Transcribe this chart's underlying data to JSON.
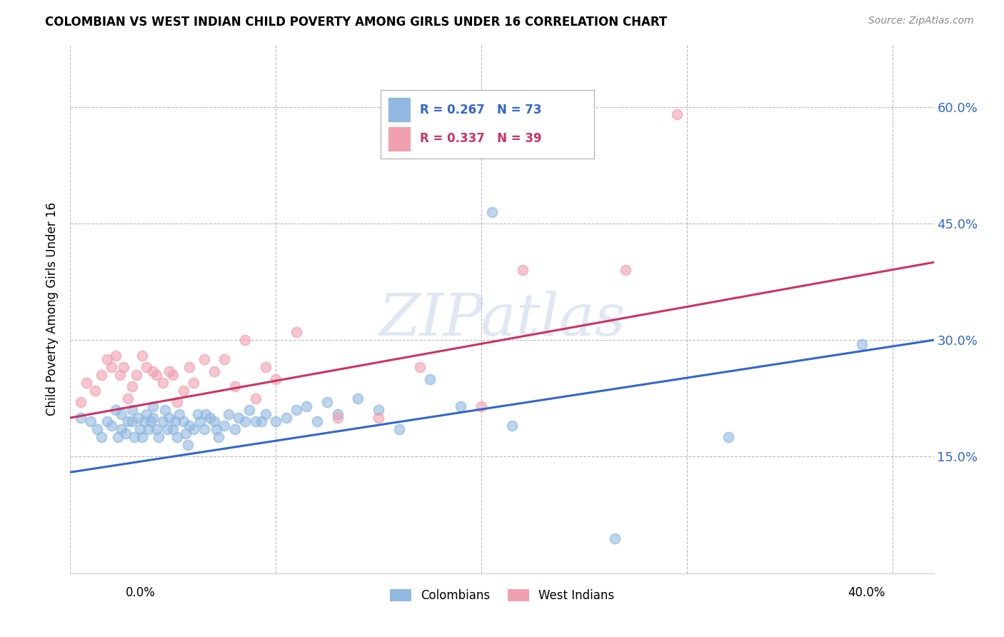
{
  "title": "COLOMBIAN VS WEST INDIAN CHILD POVERTY AMONG GIRLS UNDER 16 CORRELATION CHART",
  "source": "Source: ZipAtlas.com",
  "ylabel": "Child Poverty Among Girls Under 16",
  "ytick_labels": [
    "15.0%",
    "30.0%",
    "45.0%",
    "60.0%"
  ],
  "ytick_values": [
    0.15,
    0.3,
    0.45,
    0.6
  ],
  "xtick_labels": [
    "0.0%",
    "",
    "",
    "",
    "40.0%"
  ],
  "xtick_values": [
    0.0,
    0.1,
    0.2,
    0.3,
    0.4
  ],
  "xlim": [
    0.0,
    0.42
  ],
  "ylim": [
    0.0,
    0.68
  ],
  "watermark": "ZIPatlas",
  "legend_blue_label": "Colombians",
  "legend_pink_label": "West Indians",
  "legend_blue_R": "R = 0.267",
  "legend_blue_N": "N = 73",
  "legend_pink_R": "R = 0.337",
  "legend_pink_N": "N = 39",
  "blue_color": "#90b8e0",
  "pink_color": "#f0a0b0",
  "blue_line_color": "#3366cc",
  "pink_line_color": "#cc3366",
  "grid_color": "#bbbbbb",
  "background_color": "#ffffff",
  "colombians_x": [
    0.005,
    0.01,
    0.013,
    0.015,
    0.018,
    0.02,
    0.022,
    0.023,
    0.025,
    0.025,
    0.027,
    0.028,
    0.03,
    0.03,
    0.031,
    0.033,
    0.034,
    0.035,
    0.036,
    0.037,
    0.038,
    0.039,
    0.04,
    0.04,
    0.042,
    0.043,
    0.045,
    0.046,
    0.047,
    0.048,
    0.05,
    0.051,
    0.052,
    0.053,
    0.055,
    0.056,
    0.057,
    0.058,
    0.06,
    0.062,
    0.063,
    0.065,
    0.066,
    0.068,
    0.07,
    0.071,
    0.072,
    0.075,
    0.077,
    0.08,
    0.082,
    0.085,
    0.087,
    0.09,
    0.093,
    0.095,
    0.1,
    0.105,
    0.11,
    0.115,
    0.12,
    0.125,
    0.13,
    0.14,
    0.15,
    0.16,
    0.175,
    0.19,
    0.205,
    0.215,
    0.265,
    0.32,
    0.385
  ],
  "colombians_y": [
    0.2,
    0.195,
    0.185,
    0.175,
    0.195,
    0.19,
    0.21,
    0.175,
    0.185,
    0.205,
    0.18,
    0.195,
    0.21,
    0.195,
    0.175,
    0.2,
    0.185,
    0.175,
    0.195,
    0.205,
    0.185,
    0.195,
    0.2,
    0.215,
    0.185,
    0.175,
    0.195,
    0.21,
    0.185,
    0.2,
    0.185,
    0.195,
    0.175,
    0.205,
    0.195,
    0.18,
    0.165,
    0.19,
    0.185,
    0.205,
    0.195,
    0.185,
    0.205,
    0.2,
    0.195,
    0.185,
    0.175,
    0.19,
    0.205,
    0.185,
    0.2,
    0.195,
    0.21,
    0.195,
    0.195,
    0.205,
    0.195,
    0.2,
    0.21,
    0.215,
    0.195,
    0.22,
    0.205,
    0.225,
    0.21,
    0.185,
    0.25,
    0.215,
    0.465,
    0.19,
    0.045,
    0.175,
    0.295
  ],
  "west_indians_x": [
    0.005,
    0.008,
    0.012,
    0.015,
    0.018,
    0.02,
    0.022,
    0.024,
    0.026,
    0.028,
    0.03,
    0.032,
    0.035,
    0.037,
    0.04,
    0.042,
    0.045,
    0.048,
    0.05,
    0.052,
    0.055,
    0.058,
    0.06,
    0.065,
    0.07,
    0.075,
    0.08,
    0.085,
    0.09,
    0.095,
    0.1,
    0.11,
    0.13,
    0.15,
    0.17,
    0.2,
    0.22,
    0.27,
    0.295
  ],
  "west_indians_y": [
    0.22,
    0.245,
    0.235,
    0.255,
    0.275,
    0.265,
    0.28,
    0.255,
    0.265,
    0.225,
    0.24,
    0.255,
    0.28,
    0.265,
    0.26,
    0.255,
    0.245,
    0.26,
    0.255,
    0.22,
    0.235,
    0.265,
    0.245,
    0.275,
    0.26,
    0.275,
    0.24,
    0.3,
    0.225,
    0.265,
    0.25,
    0.31,
    0.2,
    0.2,
    0.265,
    0.215,
    0.39,
    0.39,
    0.59
  ],
  "blue_trend_x": [
    0.0,
    0.42
  ],
  "blue_trend_y": [
    0.13,
    0.3
  ],
  "pink_trend_x": [
    0.0,
    0.42
  ],
  "pink_trend_y": [
    0.2,
    0.4
  ]
}
